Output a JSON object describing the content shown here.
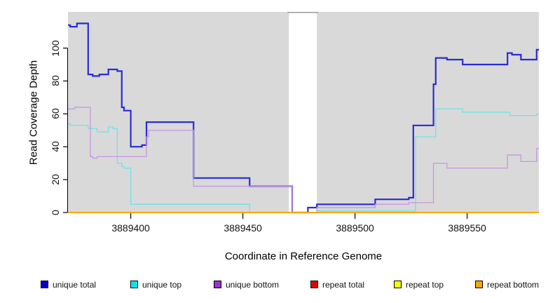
{
  "figure": {
    "kind": "read-coverage-step-plot"
  },
  "chart_data": {
    "type": "line",
    "line_style": "step",
    "title": "",
    "xlabel": "Coordinate in Reference Genome",
    "ylabel": "Read Coverage Depth",
    "xlim": [
      3889372,
      3889582
    ],
    "ylim": [
      0,
      122
    ],
    "x_ticks": [
      3889400,
      3889450,
      3889500,
      3889550
    ],
    "y_ticks": [
      0,
      20,
      40,
      60,
      80,
      100
    ],
    "grid": false,
    "panel_color": "#d9d9d9",
    "axis_color": "#000000",
    "legend_position": "bottom",
    "no_data_region": {
      "x_start": 3889470.5,
      "x_end": 3889483,
      "color": "#ffffff",
      "cap_color": "#9b9b9b"
    },
    "series": [
      {
        "id": "unique-total",
        "name": "unique total",
        "swatch_color": "#0000CD",
        "line_color": "#2B2BD5",
        "line_width": 2.2,
        "steps": [
          [
            3889372,
            114
          ],
          [
            3889373,
            113
          ],
          [
            3889376,
            115
          ],
          [
            3889381,
            84
          ],
          [
            3889383,
            83
          ],
          [
            3889386,
            84
          ],
          [
            3889390,
            87
          ],
          [
            3889394,
            86
          ],
          [
            3889396,
            64
          ],
          [
            3889397,
            62
          ],
          [
            3889400,
            40
          ],
          [
            3889405,
            41
          ],
          [
            3889407,
            55
          ],
          [
            3889428,
            21
          ],
          [
            3889453,
            16
          ],
          [
            3889472,
            0
          ],
          [
            3889479,
            3
          ],
          [
            3889483,
            5
          ],
          [
            3889509,
            8
          ],
          [
            3889524,
            9
          ],
          [
            3889526,
            53
          ],
          [
            3889535,
            78
          ],
          [
            3889536,
            94
          ],
          [
            3889541,
            93
          ],
          [
            3889548,
            90
          ],
          [
            3889568,
            97
          ],
          [
            3889570,
            96
          ],
          [
            3889574,
            93
          ],
          [
            3889581,
            99
          ]
        ]
      },
      {
        "id": "unique-top",
        "name": "unique top",
        "swatch_color": "#00E5EE",
        "line_color": "#74E2E9",
        "line_width": 1.4,
        "steps": [
          [
            3889372,
            54
          ],
          [
            3889373,
            53
          ],
          [
            3889381,
            51
          ],
          [
            3889385,
            49
          ],
          [
            3889390,
            52
          ],
          [
            3889392,
            51
          ],
          [
            3889394,
            30
          ],
          [
            3889396,
            28
          ],
          [
            3889397,
            27
          ],
          [
            3889400,
            5
          ],
          [
            3889453,
            0
          ],
          [
            3889483,
            1
          ],
          [
            3889527,
            46
          ],
          [
            3889536,
            63
          ],
          [
            3889548,
            61
          ],
          [
            3889569,
            59
          ],
          [
            3889581,
            60
          ]
        ]
      },
      {
        "id": "unique-bottom",
        "name": "unique bottom",
        "swatch_color": "#9932CC",
        "line_color": "#C89BE2",
        "line_width": 1.4,
        "steps": [
          [
            3889372,
            63
          ],
          [
            3889375,
            64
          ],
          [
            3889382,
            34
          ],
          [
            3889383,
            33
          ],
          [
            3889385,
            34
          ],
          [
            3889407,
            46
          ],
          [
            3889408,
            50
          ],
          [
            3889428,
            16
          ],
          [
            3889472,
            0
          ],
          [
            3889483,
            3
          ],
          [
            3889509,
            5
          ],
          [
            3889524,
            6
          ],
          [
            3889535,
            30
          ],
          [
            3889541,
            27
          ],
          [
            3889568,
            35
          ],
          [
            3889574,
            31
          ],
          [
            3889581,
            39
          ]
        ]
      },
      {
        "id": "repeat-total",
        "name": "repeat total",
        "swatch_color": "#E60000",
        "line_color": "#E60000",
        "line_width": 1.4,
        "steps": [
          [
            3889372,
            0
          ]
        ]
      },
      {
        "id": "repeat-top",
        "name": "repeat top",
        "swatch_color": "#FFFF00",
        "line_color": "#FFFF00",
        "line_width": 1.4,
        "steps": [
          [
            3889372,
            0
          ]
        ]
      },
      {
        "id": "repeat-bottom",
        "name": "repeat bottom",
        "swatch_color": "#FFA500",
        "line_color": "#FFA500",
        "line_width": 1.8,
        "steps": [
          [
            3889372,
            0
          ]
        ]
      }
    ]
  }
}
